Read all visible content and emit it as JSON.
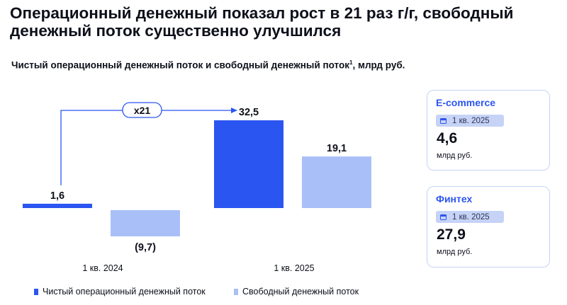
{
  "title": "Операционный денежный показал рост в 21 раз г/г, свободный денежный поток существенно улучшился",
  "subtitle": "Чистый операционный денежный поток и свободный денежный поток",
  "subtitle_footnote": "1",
  "subtitle_unit": ", млрд руб.",
  "growth_badge": "x21",
  "colors": {
    "ocf": "#2b55f0",
    "fcf": "#a9bff7",
    "accent": "#2b55f0"
  },
  "chart_data": {
    "type": "bar",
    "categories": [
      "1 кв. 2024",
      "1 кв. 2025"
    ],
    "series": [
      {
        "name": "Чистый операционный денежный поток",
        "values": [
          1.6,
          32.5
        ],
        "labels": [
          "1,6",
          "32,5"
        ]
      },
      {
        "name": "Свободный денежный поток",
        "values": [
          -9.7,
          19.1
        ],
        "labels": [
          "(9,7)",
          "19,1"
        ]
      }
    ],
    "annotation": "x21",
    "legend_position": "bottom"
  },
  "legend": [
    {
      "label": "Чистый операционный денежный поток",
      "color": "#2b55f0"
    },
    {
      "label": "Свободный денежный поток",
      "color": "#a9bff7"
    }
  ],
  "cards": [
    {
      "title": "E-commerce",
      "period": "1 кв. 2025",
      "value": "4,6",
      "unit": "млрд руб."
    },
    {
      "title": "Финтех",
      "period": "1 кв. 2025",
      "value": "27,9",
      "unit": "млрд руб."
    }
  ]
}
